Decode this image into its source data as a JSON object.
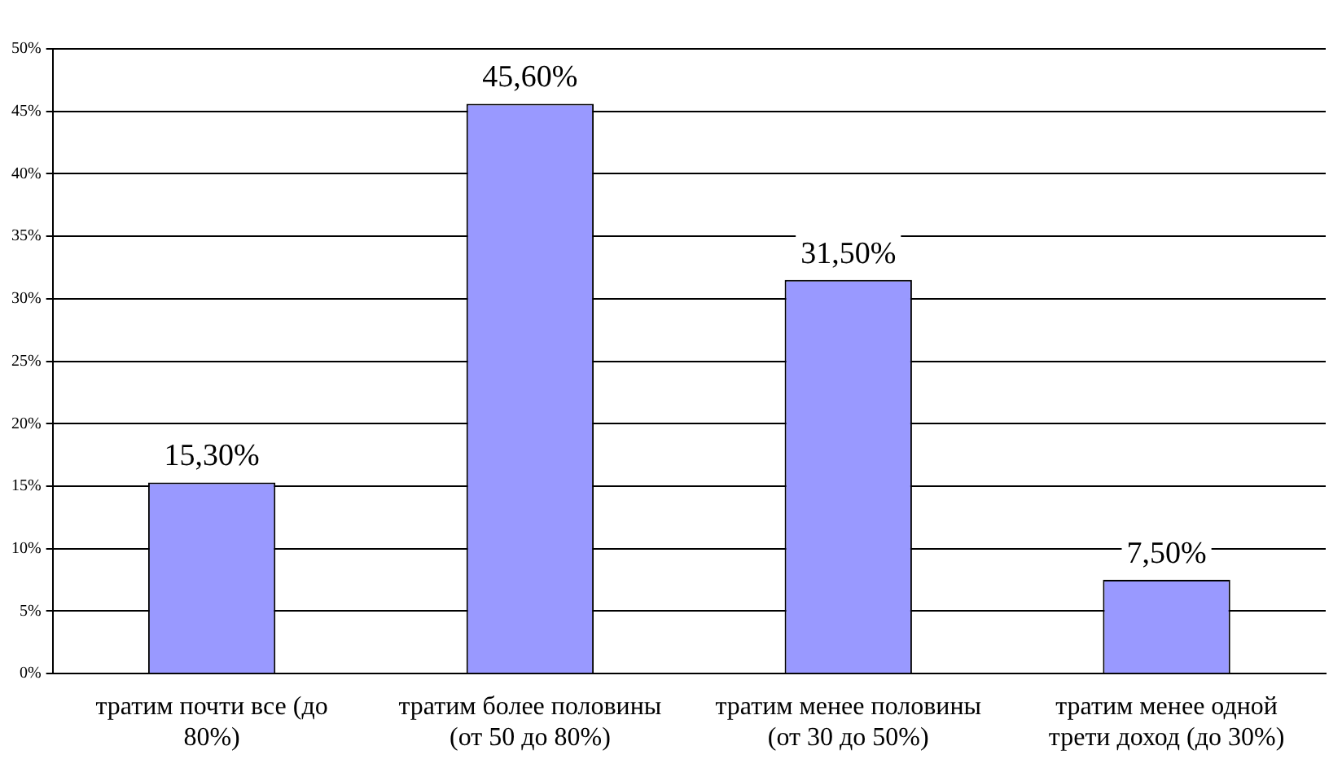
{
  "chart_data": {
    "type": "bar",
    "categories": [
      "тратим почти все (до 80%)",
      "тратим более половины (от 50 до 80%)",
      "тратим менее половины (от 30 до 50%)",
      "тратим менее одной трети доход (до 30%)"
    ],
    "values": [
      15.3,
      45.6,
      31.5,
      7.5
    ],
    "color": "#9999ff",
    "value_labels": [
      "15,30%",
      "45,60%",
      "31,50%",
      "7,50%"
    ],
    "ylim": [
      0,
      50
    ],
    "yticks": [
      {
        "value": 0,
        "label": "0%"
      },
      {
        "value": 5,
        "label": "5%"
      },
      {
        "value": 10,
        "label": "10%"
      },
      {
        "value": 15,
        "label": "15%"
      },
      {
        "value": 20,
        "label": "20%"
      },
      {
        "value": 25,
        "label": "25%"
      },
      {
        "value": 30,
        "label": "30%"
      },
      {
        "value": 35,
        "label": "35%"
      },
      {
        "value": 40,
        "label": "40%"
      },
      {
        "value": 45,
        "label": "45%"
      },
      {
        "value": 50,
        "label": "50%"
      }
    ],
    "grid": "y",
    "legend": false
  }
}
